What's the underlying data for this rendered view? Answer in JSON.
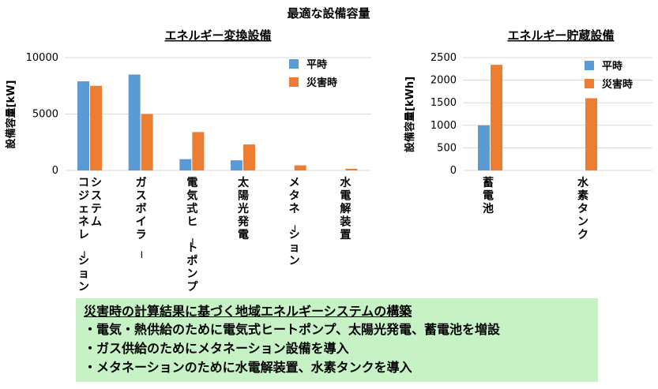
{
  "figure_title": "最適な設備容量",
  "legend": {
    "normal": "平時",
    "disaster": "災害時"
  },
  "colors": {
    "normal": "#5b9bd5",
    "disaster": "#ed7d31",
    "grid": "#d9d9d9",
    "summary_bg": "#c6f2c6"
  },
  "chart_data": [
    {
      "type": "bar",
      "title": "エネルギー変換設備",
      "ylabel": "設備容量[kW]",
      "ylim": [
        0,
        10000
      ],
      "yticks": [
        0,
        5000,
        10000
      ],
      "legend_position": "top-right",
      "grid": true,
      "categories": [
        "システムコジェネレーション",
        "ガスボイラー",
        "電気式ヒートポンプ",
        "太陽光発電",
        "メタネーション",
        "水電解装置"
      ],
      "category_lines": [
        [
          "システム",
          "コジェネレーション"
        ],
        [
          "ガスボイラー"
        ],
        [
          "電気式ヒートポンプ"
        ],
        [
          "太陽光発電"
        ],
        [
          "メタネーション"
        ],
        [
          "水電解装置"
        ]
      ],
      "series": [
        {
          "name": "平時",
          "values": [
            7900,
            8500,
            1000,
            900,
            0,
            0
          ]
        },
        {
          "name": "災害時",
          "values": [
            7500,
            5000,
            3400,
            2300,
            450,
            150
          ]
        }
      ]
    },
    {
      "type": "bar",
      "title": "エネルギー貯蔵設備",
      "ylabel": "設備容量[kWh]",
      "ylim": [
        0,
        2500
      ],
      "yticks": [
        0,
        500,
        1000,
        1500,
        2000,
        2500
      ],
      "legend_position": "top-right",
      "grid": true,
      "categories": [
        "蓄電池",
        "水素タンク"
      ],
      "category_lines": [
        [
          "蓄電池"
        ],
        [
          "水素タンク"
        ]
      ],
      "series": [
        {
          "name": "平時",
          "values": [
            1000,
            0
          ]
        },
        {
          "name": "災害時",
          "values": [
            2340,
            1600
          ]
        }
      ]
    }
  ],
  "summary": {
    "heading": "災害時の計算結果に基づく地域エネルギーシステムの構築",
    "bullets": [
      "・電気・熱供給のために電気式ヒートポンプ、太陽光発電、蓄電池を増設",
      "・ガス供給のためにメタネーション設備を導入",
      "・メタネーションのために水電解装置、水素タンクを導入"
    ]
  }
}
